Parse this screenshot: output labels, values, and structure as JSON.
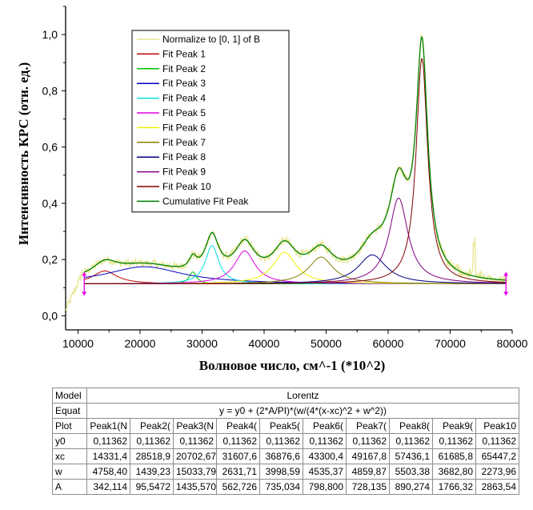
{
  "chart_data": {
    "type": "line",
    "xlabel": "Волновое число, см^-1 (*10^2)",
    "ylabel": "Интенсивность КРС (отн. ед.)",
    "xlim": [
      8000,
      80000
    ],
    "ylim": [
      -0.05,
      1.1
    ],
    "xticks": [
      "10000",
      "20000",
      "30000",
      "40000",
      "50000",
      "60000",
      "70000",
      "80000"
    ],
    "xtick_values": [
      10000,
      20000,
      30000,
      40000,
      50000,
      60000,
      70000,
      80000
    ],
    "yticks": [
      "0,0",
      "0,2",
      "0,4",
      "0,6",
      "0,8",
      "1,0"
    ],
    "ytick_values": [
      0,
      0.2,
      0.4,
      0.6,
      0.8,
      1.0
    ],
    "fit_range": [
      11000,
      79000
    ],
    "y0": 0.11362,
    "colors": {
      "data": "#e8e89a",
      "cumulative": "#008000",
      "peaks": [
        "#c00000",
        "#00c000",
        "#0000c0",
        "#00e0e0",
        "#e000e0",
        "#f0f000",
        "#808000",
        "#000080",
        "#800080",
        "#800000"
      ]
    },
    "series": [
      {
        "name": "Normalize to [0, 1] of B",
        "color": "#e8e89a"
      },
      {
        "name": "Fit Peak 1",
        "color": "#c00000",
        "xc": 14331.4,
        "w": 4758.4,
        "A": 342.114
      },
      {
        "name": "Fit Peak 2",
        "color": "#00c000",
        "xc": 28518.9,
        "w": 1439.23,
        "A": 95.5472
      },
      {
        "name": "Fit Peak 3",
        "color": "#0000c0",
        "xc": 20702.67,
        "w": 15033.79,
        "A": 1435.57
      },
      {
        "name": "Fit Peak 4",
        "color": "#00e0e0",
        "xc": 31607.6,
        "w": 2631.71,
        "A": 562.726
      },
      {
        "name": "Fit Peak 5",
        "color": "#e000e0",
        "xc": 36876.6,
        "w": 3998.59,
        "A": 735.034
      },
      {
        "name": "Fit Peak 6",
        "color": "#f0f000",
        "xc": 43300.4,
        "w": 4535.37,
        "A": 798.8
      },
      {
        "name": "Fit Peak 7",
        "color": "#808000",
        "xc": 49167.8,
        "w": 4859.87,
        "A": 728.135
      },
      {
        "name": "Fit Peak 8",
        "color": "#000080",
        "xc": 57436.1,
        "w": 5503.38,
        "A": 890.274
      },
      {
        "name": "Fit Peak 9",
        "color": "#800080",
        "xc": 61685.8,
        "w": 3682.8,
        "A": 1766.32
      },
      {
        "name": "Fit Peak 10",
        "color": "#800000",
        "xc": 65447.2,
        "w": 2273.96,
        "A": 2863.54
      },
      {
        "name": "Cumulative Fit Peak",
        "color": "#008000"
      }
    ]
  },
  "table": {
    "rows": [
      {
        "head": "Model",
        "span": "Lorentz"
      },
      {
        "head": "Equat",
        "span": "y = y0 + (2*A/PI)*(w/(4*(x-xc)^2 + w^2))"
      },
      {
        "head": "Plot",
        "cells": [
          "Peak1(N",
          "Peak2(",
          "Peak3(N",
          "Peak4(",
          "Peak5(",
          "Peak6(",
          "Peak7(",
          "Peak8(",
          "Peak9(",
          "Peak10"
        ]
      },
      {
        "head": "y0",
        "cells": [
          "0,11362",
          "0,11362",
          "0,11362",
          "0,11362",
          "0,11362",
          "0,11362",
          "0,11362",
          "0,11362",
          "0,11362",
          "0,11362"
        ]
      },
      {
        "head": "xc",
        "cells": [
          "14331,4",
          "28518,9",
          "20702,67",
          "31607,6",
          "36876,6",
          "43300,4",
          "49167,8",
          "57436,1",
          "61685,8",
          "65447,2"
        ]
      },
      {
        "head": "w",
        "cells": [
          "4758,40",
          "1439,23",
          "15033,79",
          "2631,71",
          "3998,59",
          "4535,37",
          "4859,87",
          "5503,38",
          "3682,80",
          "2273,96"
        ]
      },
      {
        "head": "A",
        "cells": [
          "342,114",
          "95,5472",
          "1435,570",
          "562,726",
          "735,034",
          "798,800",
          "728,135",
          "890,274",
          "1766,32",
          "2863,54"
        ]
      }
    ]
  }
}
